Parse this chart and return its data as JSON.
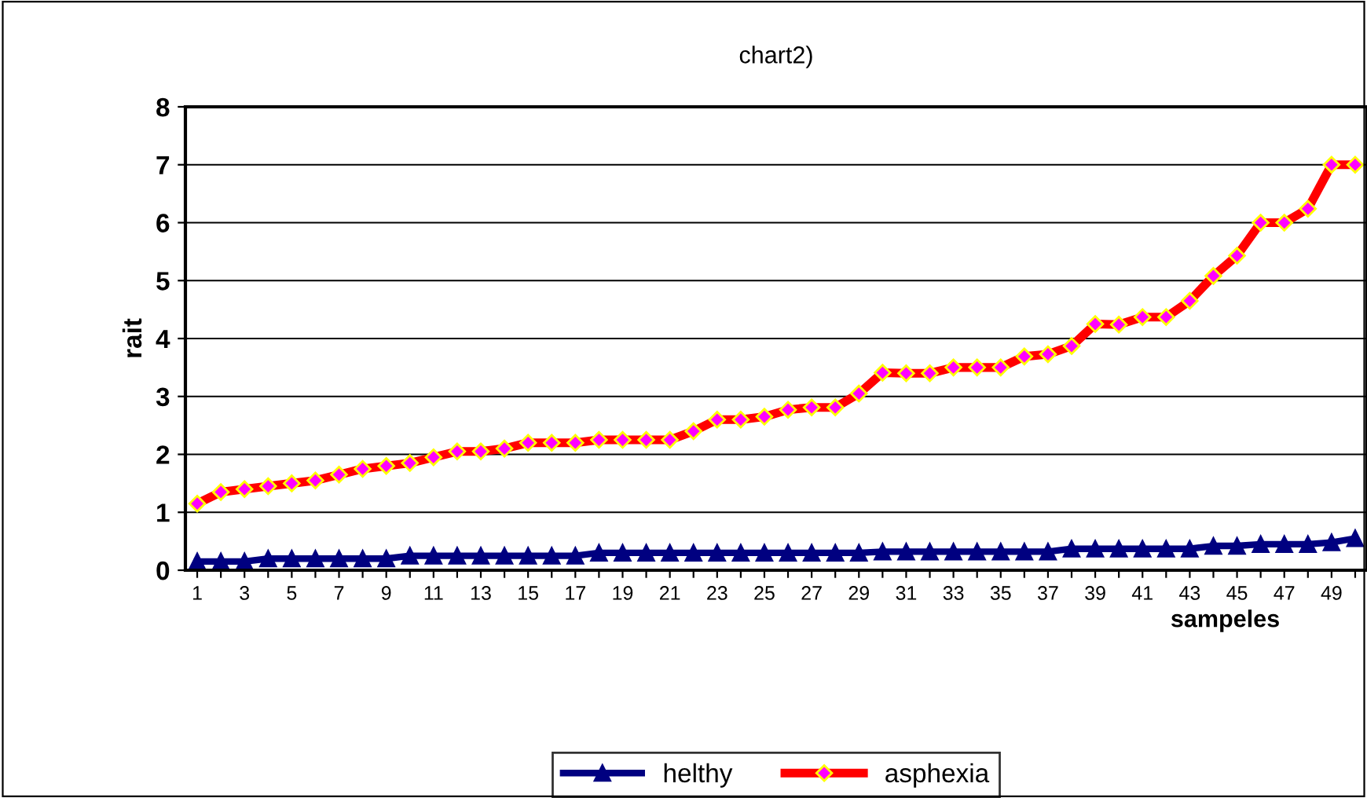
{
  "chart_data": {
    "type": "line",
    "title": "chart2)",
    "xlabel": "sampeles",
    "ylabel": "rait",
    "categories": [
      "1",
      null,
      "3",
      null,
      "5",
      null,
      "7",
      null,
      "9",
      null,
      "11",
      null,
      "13",
      null,
      "15",
      null,
      "17",
      null,
      "19",
      null,
      "21",
      null,
      "23",
      null,
      "25",
      null,
      "27",
      null,
      "29",
      null,
      "31",
      null,
      "33",
      null,
      "35",
      null,
      "37",
      null,
      "39",
      null,
      "41",
      null,
      "43",
      null,
      "45",
      null,
      "47",
      null,
      "49",
      null
    ],
    "series": [
      {
        "name": "helthy",
        "color": "#000080",
        "marker": "triangle",
        "values": [
          0.15,
          0.15,
          0.15,
          0.2,
          0.2,
          0.2,
          0.2,
          0.2,
          0.2,
          0.25,
          0.25,
          0.25,
          0.25,
          0.25,
          0.25,
          0.25,
          0.25,
          0.3,
          0.3,
          0.3,
          0.3,
          0.3,
          0.3,
          0.3,
          0.3,
          0.3,
          0.3,
          0.3,
          0.3,
          0.32,
          0.32,
          0.32,
          0.32,
          0.32,
          0.32,
          0.32,
          0.32,
          0.37,
          0.37,
          0.37,
          0.37,
          0.37,
          0.37,
          0.42,
          0.42,
          0.45,
          0.45,
          0.45,
          0.48,
          0.55
        ]
      },
      {
        "name": "asphexia",
        "color": "#ff0000",
        "marker": "diamond",
        "values": [
          1.15,
          1.35,
          1.4,
          1.45,
          1.5,
          1.55,
          1.65,
          1.75,
          1.8,
          1.85,
          1.95,
          2.05,
          2.05,
          2.1,
          2.2,
          2.2,
          2.2,
          2.25,
          2.25,
          2.25,
          2.25,
          2.4,
          2.6,
          2.6,
          2.65,
          2.77,
          2.81,
          2.81,
          3.05,
          3.41,
          3.4,
          3.4,
          3.5,
          3.5,
          3.5,
          3.69,
          3.73,
          3.87,
          4.25,
          4.24,
          4.37,
          4.37,
          4.65,
          5.08,
          5.43,
          6.0,
          6.0,
          6.24,
          7.0,
          7.0
        ]
      }
    ],
    "ylim": [
      0,
      8
    ],
    "yticks": [
      0,
      1,
      2,
      3,
      4,
      5,
      6,
      7,
      8
    ],
    "grid": "y",
    "legend": "bottom",
    "line_style": "solid"
  }
}
